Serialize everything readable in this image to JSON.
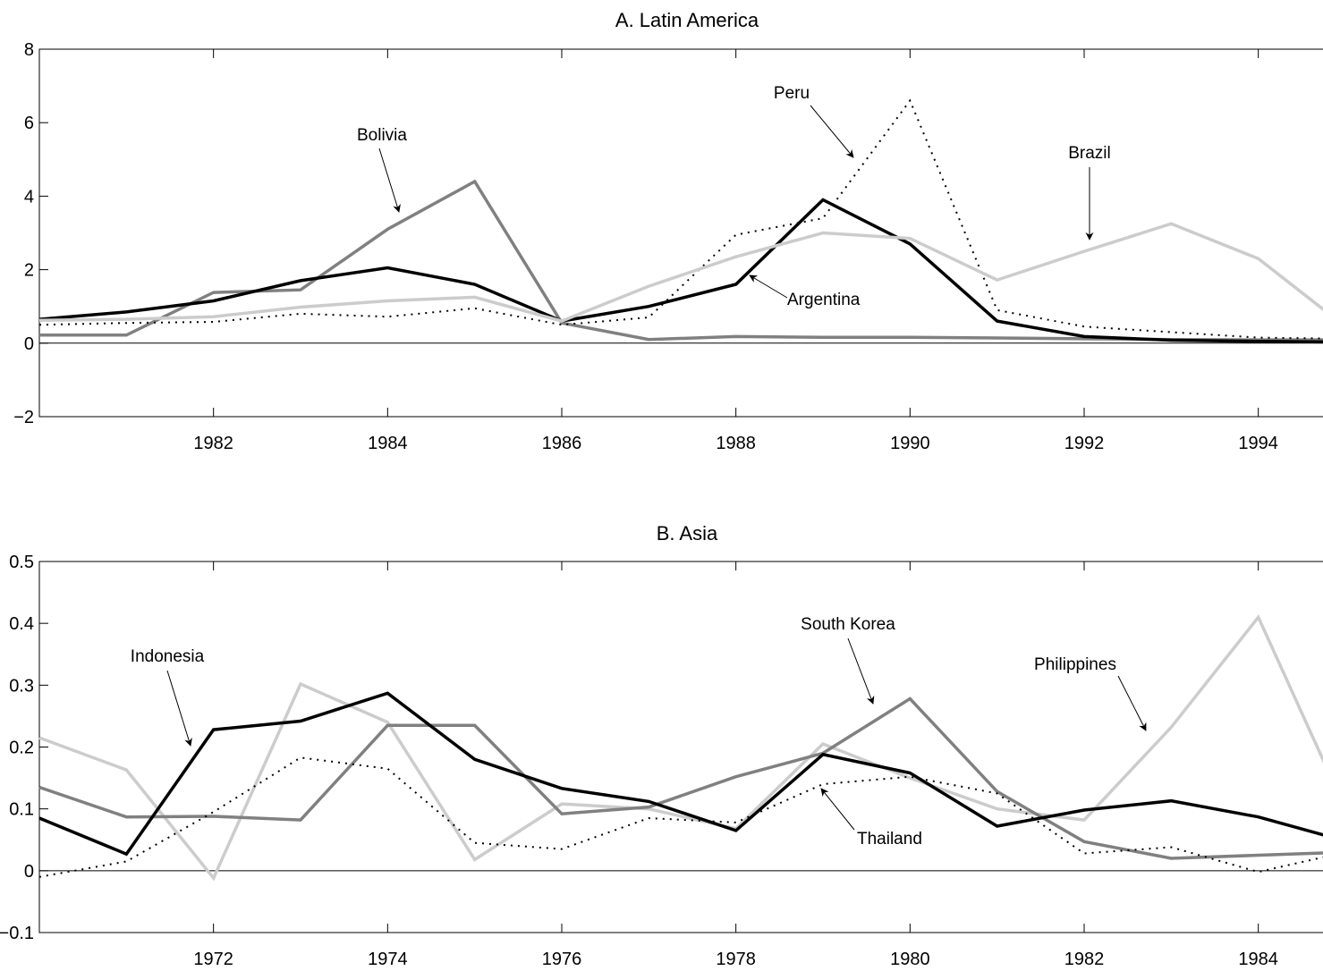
{
  "chart_data": [
    {
      "type": "line",
      "title": "A. Latin America",
      "xlabel": "",
      "ylabel": "",
      "xlim": [
        1980,
        1995
      ],
      "ylim": [
        -2,
        8
      ],
      "x_ticks": [
        1982,
        1984,
        1986,
        1988,
        1990,
        1992,
        1994
      ],
      "x_tick_labels": [
        "1982",
        "1984",
        "1986",
        "1988",
        "1990",
        "1992",
        "1994"
      ],
      "y_ticks": [
        -2,
        0,
        2,
        4,
        6,
        8
      ],
      "y_tick_labels": [
        "−2",
        "0",
        "2",
        "4",
        "6",
        "8"
      ],
      "zero_line": true,
      "grid": false,
      "x": [
        1980,
        1981,
        1982,
        1983,
        1984,
        1985,
        1986,
        1987,
        1988,
        1989,
        1990,
        1991,
        1992,
        1993,
        1994,
        1995
      ],
      "series": [
        {
          "key": "bolivia",
          "values": [
            0.22,
            0.22,
            1.38,
            1.45,
            3.1,
            4.4,
            0.55,
            0.1,
            0.18,
            0.16,
            0.16,
            0.14,
            0.12,
            0.1,
            0.09,
            0.09
          ],
          "color": "#808080",
          "dash": "solid"
        },
        {
          "key": "peru",
          "values": [
            0.5,
            0.55,
            0.58,
            0.8,
            0.72,
            0.95,
            0.5,
            0.7,
            2.95,
            3.4,
            6.6,
            0.9,
            0.45,
            0.3,
            0.15,
            0.12
          ],
          "color": "#000000",
          "dash": "dotted"
        },
        {
          "key": "argentina",
          "values": [
            0.65,
            0.85,
            1.15,
            1.7,
            2.05,
            1.6,
            0.6,
            1.0,
            1.6,
            3.9,
            2.7,
            0.6,
            0.18,
            0.08,
            0.05,
            0.03
          ],
          "color": "#000000",
          "dash": "solid"
        },
        {
          "key": "brazil",
          "values": [
            0.62,
            0.65,
            0.72,
            0.98,
            1.15,
            1.25,
            0.6,
            1.55,
            2.35,
            3.0,
            2.85,
            1.72,
            2.5,
            3.25,
            2.3,
            0.45
          ],
          "color": "#cccccc",
          "dash": "solid"
        }
      ],
      "annotations": [
        {
          "series": "bolivia",
          "text": "Bolivia"
        },
        {
          "series": "peru",
          "text": "Peru"
        },
        {
          "series": "brazil",
          "text": "Brazil"
        },
        {
          "series": "argentina",
          "text": "Argentina"
        }
      ]
    },
    {
      "type": "line",
      "title": "B. Asia",
      "xlabel": "",
      "ylabel": "",
      "xlim": [
        1970,
        1985
      ],
      "ylim": [
        -0.1,
        0.5
      ],
      "x_ticks": [
        1972,
        1974,
        1976,
        1978,
        1980,
        1982,
        1984
      ],
      "x_tick_labels": [
        "1972",
        "1974",
        "1976",
        "1978",
        "1980",
        "1982",
        "1984"
      ],
      "y_ticks": [
        -0.1,
        0,
        0.1,
        0.2,
        0.3,
        0.4,
        0.5
      ],
      "y_tick_labels": [
        "−0.1",
        "0",
        "0.1",
        "0.2",
        "0.3",
        "0.4",
        "0.5"
      ],
      "zero_line": true,
      "grid": false,
      "x": [
        1970,
        1971,
        1972,
        1973,
        1974,
        1975,
        1976,
        1977,
        1978,
        1979,
        1980,
        1981,
        1982,
        1983,
        1984,
        1985
      ],
      "series": [
        {
          "key": "philippines",
          "values": [
            0.215,
            0.163,
            -0.012,
            0.302,
            0.24,
            0.018,
            0.108,
            0.1,
            0.068,
            0.205,
            0.15,
            0.1,
            0.082,
            0.232,
            0.41,
            0.1
          ],
          "color": "#cccccc",
          "dash": "solid"
        },
        {
          "key": "south_korea",
          "values": [
            0.135,
            0.087,
            0.088,
            0.082,
            0.235,
            0.235,
            0.092,
            0.103,
            0.152,
            0.19,
            0.278,
            0.128,
            0.047,
            0.02,
            0.025,
            0.03
          ],
          "color": "#808080",
          "dash": "solid"
        },
        {
          "key": "thailand",
          "values": [
            -0.01,
            0.015,
            0.095,
            0.183,
            0.165,
            0.045,
            0.035,
            0.085,
            0.078,
            0.14,
            0.152,
            0.125,
            0.028,
            0.038,
            -0.002,
            0.03
          ],
          "color": "#000000",
          "dash": "dotted"
        },
        {
          "key": "indonesia",
          "values": [
            0.085,
            0.027,
            0.228,
            0.242,
            0.287,
            0.18,
            0.133,
            0.112,
            0.065,
            0.188,
            0.158,
            0.072,
            0.098,
            0.113,
            0.087,
            0.048
          ],
          "color": "#000000",
          "dash": "solid"
        }
      ],
      "annotations": [
        {
          "series": "indonesia",
          "text": "Indonesia"
        },
        {
          "series": "south_korea",
          "text": "South Korea"
        },
        {
          "series": "philippines",
          "text": "Philippines"
        },
        {
          "series": "thailand",
          "text": "Thailand"
        }
      ]
    }
  ]
}
